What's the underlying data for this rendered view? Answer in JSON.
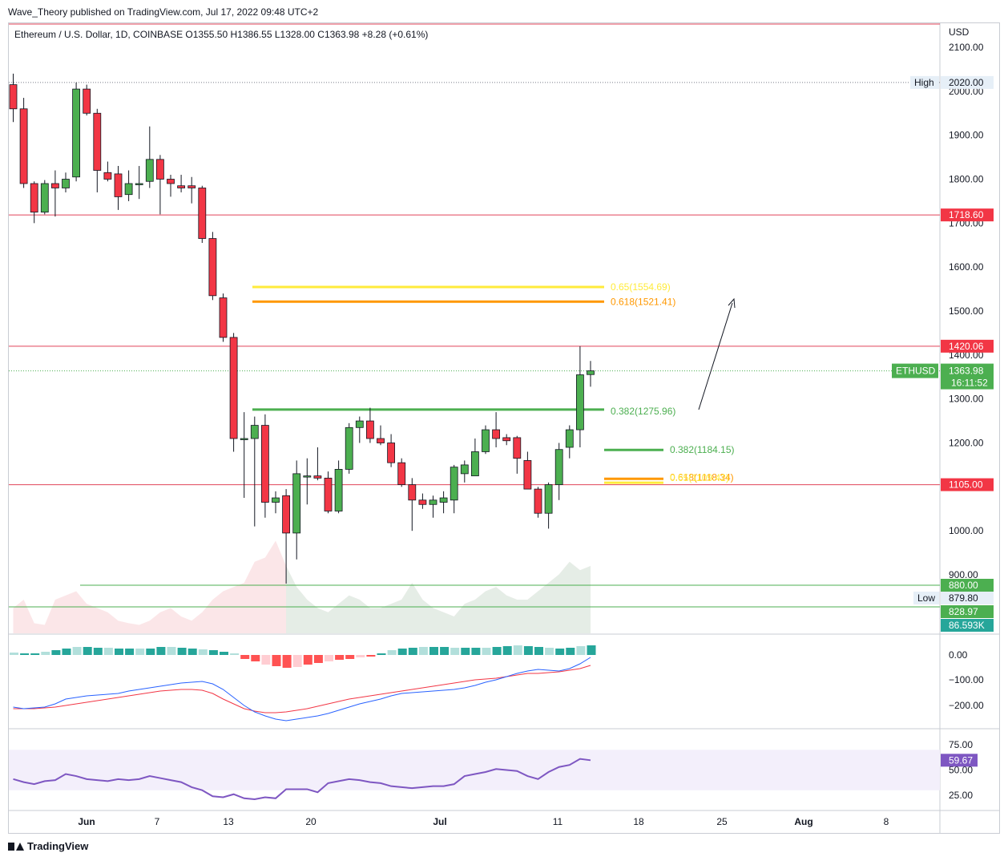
{
  "header": {
    "publisher_text": "Wave_Theory published on TradingView.com, Jul 17, 2022 09:48 UTC+2"
  },
  "legend": {
    "symbol_text": "Ethereum / U.S. Dollar, 1D, COINBASE",
    "ohlc": [
      {
        "label": "O",
        "value": "1355.50"
      },
      {
        "label": "H",
        "value": "1386.55"
      },
      {
        "label": "L",
        "value": "1328.00"
      },
      {
        "label": "C",
        "value": "1363.98"
      }
    ],
    "change": "+8.28 (+0.61%)"
  },
  "footer": {
    "brand": "TradingView"
  },
  "colors": {
    "up": "#4caf50",
    "down": "#f23645",
    "level_line": "#e0445a",
    "fib_yellow": "#ffeb3b",
    "fib_orange": "#ff9800",
    "fib_green": "#4caf50",
    "macd_line": "#2962ff",
    "signal_line": "#f23645",
    "rsi_line": "#7e57c2",
    "rsi_band": "#f3effb"
  },
  "chart_data": [
    {
      "type": "candlestick",
      "currency_label": "USD",
      "ylim": [
        840,
        2130
      ],
      "y_ticks": [
        "2100.00",
        "2000.00",
        "1900.00",
        "1800.00",
        "1700.00",
        "1600.00",
        "1500.00",
        "1400.00",
        "1300.00",
        "1200.00",
        "1100.00",
        "1000.00",
        "900.00"
      ],
      "x_ticks": [
        "Jun",
        "7",
        "13",
        "20",
        "Jul",
        "11",
        "18",
        "25",
        "Aug",
        "8"
      ],
      "candles": [
        {
          "d": "May 20",
          "o": 2015,
          "h": 2040,
          "l": 1930,
          "c": 1960
        },
        {
          "d": "May 21",
          "o": 1960,
          "h": 1985,
          "l": 1780,
          "c": 1790
        },
        {
          "d": "May 22",
          "o": 1790,
          "h": 1795,
          "l": 1700,
          "c": 1725
        },
        {
          "d": "May 23",
          "o": 1725,
          "h": 1798,
          "l": 1720,
          "c": 1790
        },
        {
          "d": "May 24",
          "o": 1790,
          "h": 1820,
          "l": 1715,
          "c": 1780
        },
        {
          "d": "May 25",
          "o": 1780,
          "h": 1815,
          "l": 1770,
          "c": 1800
        },
        {
          "d": "May 26",
          "o": 1805,
          "h": 2020,
          "l": 1795,
          "c": 2005
        },
        {
          "d": "May 27",
          "o": 2005,
          "h": 2015,
          "l": 1945,
          "c": 1950
        },
        {
          "d": "May 28",
          "o": 1950,
          "h": 1960,
          "l": 1770,
          "c": 1820
        },
        {
          "d": "May 29",
          "o": 1815,
          "h": 1840,
          "l": 1795,
          "c": 1800
        },
        {
          "d": "May 30",
          "o": 1812,
          "h": 1830,
          "l": 1730,
          "c": 1760
        },
        {
          "d": "May 31",
          "o": 1765,
          "h": 1820,
          "l": 1750,
          "c": 1790
        },
        {
          "d": "Jun 1",
          "o": 1790,
          "h": 1830,
          "l": 1755,
          "c": 1790
        },
        {
          "d": "Jun 2",
          "o": 1795,
          "h": 1920,
          "l": 1780,
          "c": 1845
        },
        {
          "d": "Jun 3",
          "o": 1845,
          "h": 1855,
          "l": 1720,
          "c": 1800
        },
        {
          "d": "Jun 4",
          "o": 1800,
          "h": 1810,
          "l": 1760,
          "c": 1790
        },
        {
          "d": "Jun 5",
          "o": 1785,
          "h": 1810,
          "l": 1770,
          "c": 1780
        },
        {
          "d": "Jun 6",
          "o": 1785,
          "h": 1805,
          "l": 1745,
          "c": 1780
        },
        {
          "d": "Jun 7",
          "o": 1780,
          "h": 1785,
          "l": 1655,
          "c": 1665
        },
        {
          "d": "Jun 8",
          "o": 1665,
          "h": 1680,
          "l": 1525,
          "c": 1535
        },
        {
          "d": "Jun 9",
          "o": 1530,
          "h": 1540,
          "l": 1430,
          "c": 1440
        },
        {
          "d": "Jun 10",
          "o": 1440,
          "h": 1450,
          "l": 1180,
          "c": 1210
        },
        {
          "d": "Jun 11",
          "o": 1210,
          "h": 1270,
          "l": 1075,
          "c": 1210
        },
        {
          "d": "Jun 12",
          "o": 1210,
          "h": 1260,
          "l": 1010,
          "c": 1240
        },
        {
          "d": "Jun 13",
          "o": 1240,
          "h": 1265,
          "l": 1030,
          "c": 1065
        },
        {
          "d": "Jun 14",
          "o": 1065,
          "h": 1090,
          "l": 1040,
          "c": 1075
        },
        {
          "d": "Jun 15",
          "o": 1080,
          "h": 1095,
          "l": 880,
          "c": 995
        },
        {
          "d": "Jun 16",
          "o": 995,
          "h": 1160,
          "l": 935,
          "c": 1130
        },
        {
          "d": "Jun 17",
          "o": 1125,
          "h": 1165,
          "l": 1060,
          "c": 1125
        },
        {
          "d": "Jun 18",
          "o": 1125,
          "h": 1190,
          "l": 1115,
          "c": 1120
        },
        {
          "d": "Jun 19",
          "o": 1120,
          "h": 1135,
          "l": 1040,
          "c": 1045
        },
        {
          "d": "Jun 20",
          "o": 1045,
          "h": 1160,
          "l": 1040,
          "c": 1140
        },
        {
          "d": "Jun 21",
          "o": 1140,
          "h": 1245,
          "l": 1130,
          "c": 1235
        },
        {
          "d": "Jun 22",
          "o": 1235,
          "h": 1260,
          "l": 1200,
          "c": 1250
        },
        {
          "d": "Jun 23",
          "o": 1250,
          "h": 1280,
          "l": 1200,
          "c": 1210
        },
        {
          "d": "Jun 24",
          "o": 1210,
          "h": 1240,
          "l": 1195,
          "c": 1200
        },
        {
          "d": "Jun 25",
          "o": 1200,
          "h": 1220,
          "l": 1145,
          "c": 1155
        },
        {
          "d": "Jun 26",
          "o": 1155,
          "h": 1165,
          "l": 1100,
          "c": 1105
        },
        {
          "d": "Jun 27",
          "o": 1105,
          "h": 1120,
          "l": 1000,
          "c": 1070
        },
        {
          "d": "Jun 28",
          "o": 1070,
          "h": 1085,
          "l": 1050,
          "c": 1060
        },
        {
          "d": "Jun 29",
          "o": 1060,
          "h": 1080,
          "l": 1030,
          "c": 1070
        },
        {
          "d": "Jun 30",
          "o": 1065,
          "h": 1090,
          "l": 1040,
          "c": 1075
        },
        {
          "d": "Jul 1",
          "o": 1070,
          "h": 1150,
          "l": 1040,
          "c": 1145
        },
        {
          "d": "Jul 2",
          "o": 1130,
          "h": 1160,
          "l": 1110,
          "c": 1150
        },
        {
          "d": "Jul 3",
          "o": 1125,
          "h": 1210,
          "l": 1125,
          "c": 1180
        },
        {
          "d": "Jul 4",
          "o": 1180,
          "h": 1240,
          "l": 1175,
          "c": 1230
        },
        {
          "d": "Jul 5",
          "o": 1230,
          "h": 1270,
          "l": 1190,
          "c": 1210
        },
        {
          "d": "Jul 6",
          "o": 1212,
          "h": 1220,
          "l": 1195,
          "c": 1205
        },
        {
          "d": "Jul 7",
          "o": 1212,
          "h": 1216,
          "l": 1130,
          "c": 1165
        },
        {
          "d": "Jul 8",
          "o": 1160,
          "h": 1180,
          "l": 1100,
          "c": 1095
        },
        {
          "d": "Jul 9",
          "o": 1095,
          "h": 1100,
          "l": 1030,
          "c": 1040
        },
        {
          "d": "Jul 10",
          "o": 1040,
          "h": 1110,
          "l": 1005,
          "c": 1105
        },
        {
          "d": "Jul 11",
          "o": 1105,
          "h": 1200,
          "l": 1070,
          "c": 1185
        },
        {
          "d": "Jul 12",
          "o": 1190,
          "h": 1240,
          "l": 1165,
          "c": 1230
        },
        {
          "d": "Jul 13",
          "o": 1230,
          "h": 1420,
          "l": 1190,
          "c": 1355
        },
        {
          "d": "Jul 14",
          "o": 1355.5,
          "h": 1386.55,
          "l": 1328,
          "c": 1363.98
        }
      ],
      "levels": [
        {
          "label": "High",
          "value": "2020.00"
        },
        {
          "value": "1718.60"
        },
        {
          "value": "1420.06"
        },
        {
          "value": "1105.00"
        },
        {
          "value": "880.00"
        },
        {
          "label": "Low",
          "value": "879.80"
        },
        {
          "value": "828.97"
        },
        {
          "value": "86.593K"
        }
      ],
      "last_price": {
        "symbol": "ETHUSD",
        "value": "1363.98",
        "countdown": "16:11:52"
      },
      "fib_levels": [
        {
          "label": "0.65(1554.69)",
          "value": 1554.69
        },
        {
          "label": "0.618(1521.41)",
          "value": 1521.41
        },
        {
          "label": "0.382(1275.96)",
          "value": 1275.96
        },
        {
          "label": "0.382(1184.15)",
          "value": 1184.15
        },
        {
          "label": "0.618(1118.34)",
          "value": 1118.34
        },
        {
          "label": "0.65(1109.42)",
          "value": 1109.42
        }
      ],
      "volume_peaks": [
        86593
      ]
    },
    {
      "type": "macd",
      "y_ticks": [
        "0.00",
        "−100.00",
        "−200.00"
      ]
    },
    {
      "type": "rsi",
      "y_ticks": [
        "75.00",
        "50.00",
        "25.00"
      ],
      "last_value": "59.67",
      "values": [
        41,
        38,
        36,
        39,
        40,
        46,
        44,
        41,
        40,
        39,
        41,
        40,
        41,
        44,
        42,
        40,
        38,
        33,
        30,
        24,
        23,
        26,
        22,
        21,
        23,
        22,
        31,
        31,
        31,
        28,
        37,
        39,
        41,
        40,
        38,
        37,
        34,
        33,
        32,
        33,
        34,
        34,
        36,
        44,
        46,
        48,
        51,
        50,
        49,
        44,
        41,
        48,
        53,
        55,
        61,
        59.67
      ]
    }
  ]
}
